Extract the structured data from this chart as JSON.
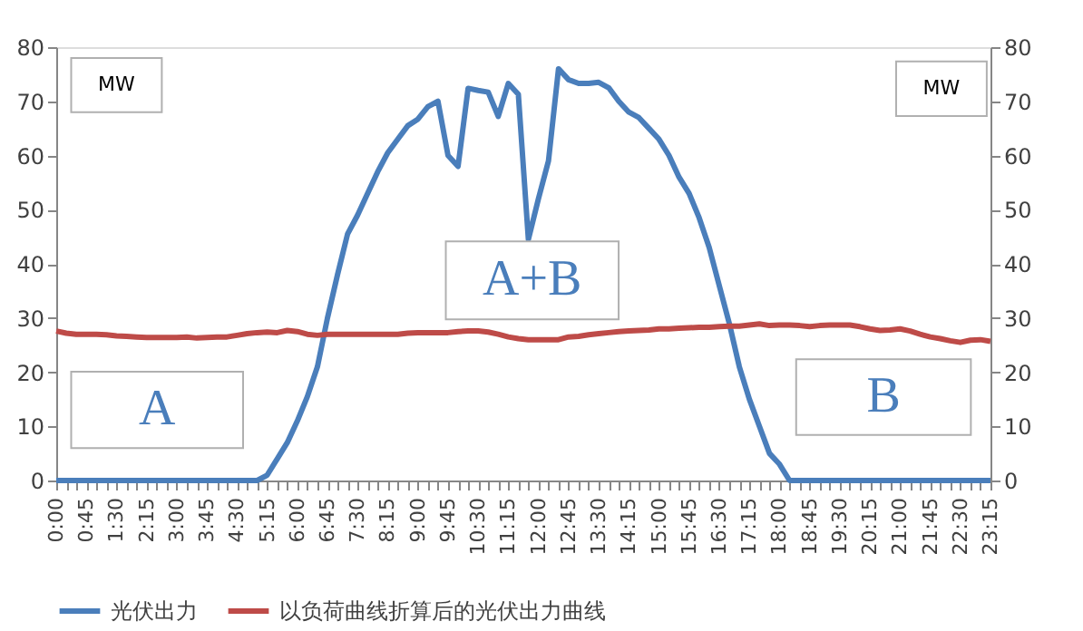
{
  "chart_data": {
    "type": "line",
    "categories": [
      "0:00",
      null,
      null,
      "0:45",
      null,
      null,
      "1:30",
      null,
      null,
      "2:15",
      null,
      null,
      "3:00",
      null,
      null,
      "3:45",
      null,
      null,
      "4:30",
      null,
      null,
      "5:15",
      null,
      null,
      "6:00",
      null,
      null,
      "6:45",
      null,
      null,
      "7:30",
      null,
      null,
      "8:15",
      null,
      null,
      "9:00",
      null,
      null,
      "9:45",
      null,
      null,
      "10:30",
      null,
      null,
      "11:15",
      null,
      null,
      "12:00",
      null,
      null,
      "12:45",
      null,
      null,
      "13:30",
      null,
      null,
      "14:15",
      null,
      null,
      "15:00",
      null,
      null,
      "15:45",
      null,
      null,
      "16:30",
      null,
      null,
      "17:15",
      null,
      null,
      "18:00",
      null,
      null,
      "18:45",
      null,
      null,
      "19:30",
      null,
      null,
      "20:15",
      null,
      null,
      "21:00",
      null,
      null,
      "21:45",
      null,
      null,
      "22:30",
      null,
      null,
      "23:15"
    ],
    "series": [
      {
        "name": "光伏出力",
        "color": "#4a7ebb",
        "values": [
          0,
          0,
          0,
          0,
          0,
          0,
          0,
          0,
          0,
          0,
          0,
          0,
          0,
          0,
          0,
          0,
          0,
          0,
          0,
          0,
          0,
          1,
          4,
          7,
          11,
          15.5,
          21,
          30,
          38,
          45.5,
          49,
          53,
          57,
          60.5,
          63,
          65.5,
          66.7,
          69,
          70,
          60,
          58,
          72.4,
          72,
          71.7,
          67.2,
          73.3,
          71.3,
          44.5,
          52,
          59,
          76,
          74,
          73.3,
          73.3,
          73.5,
          72.5,
          70,
          68,
          67,
          65,
          63,
          60,
          56,
          53,
          48.5,
          43,
          36,
          29,
          21,
          15,
          10,
          5,
          3,
          0,
          0,
          0,
          0,
          0,
          0,
          0,
          0,
          0,
          0,
          0,
          0,
          0,
          0,
          0,
          0,
          0,
          0,
          0,
          0,
          0
        ]
      },
      {
        "name": "以负荷曲线折算后的光伏出力曲线",
        "color": "#be4b48",
        "values": [
          27.6,
          27.2,
          27.0,
          27.0,
          27.0,
          26.9,
          26.7,
          26.6,
          26.5,
          26.4,
          26.4,
          26.4,
          26.4,
          26.5,
          26.3,
          26.4,
          26.5,
          26.5,
          26.8,
          27.1,
          27.3,
          27.4,
          27.3,
          27.7,
          27.5,
          27.0,
          26.8,
          27.0,
          27.0,
          27.0,
          27.0,
          27.0,
          27.0,
          27.0,
          27.0,
          27.2,
          27.3,
          27.3,
          27.3,
          27.3,
          27.5,
          27.6,
          27.6,
          27.4,
          27.0,
          26.5,
          26.2,
          26.0,
          26.0,
          26.0,
          26.0,
          26.5,
          26.6,
          26.9,
          27.1,
          27.3,
          27.5,
          27.6,
          27.7,
          27.8,
          28.0,
          28.0,
          28.1,
          28.2,
          28.3,
          28.3,
          28.4,
          28.5,
          28.5,
          28.7,
          28.9,
          28.6,
          28.7,
          28.7,
          28.6,
          28.4,
          28.6,
          28.7,
          28.7,
          28.7,
          28.4,
          28.0,
          27.7,
          27.8,
          28.0,
          27.6,
          27.0,
          26.5,
          26.2,
          25.8,
          25.5,
          25.9,
          26.0,
          25.7
        ]
      }
    ],
    "ylim": [
      0,
      80
    ],
    "yticks": [
      0,
      10,
      20,
      30,
      40,
      50,
      60,
      70,
      80
    ],
    "y2lim": [
      0,
      80
    ],
    "y2ticks": [
      0,
      10,
      20,
      30,
      40,
      50,
      60,
      70,
      80
    ],
    "annotations": [
      "MW",
      "MW",
      "A",
      "A+B",
      "B"
    ],
    "grid": false,
    "legend": "bottom",
    "marker": "none",
    "line_style": "solid"
  }
}
